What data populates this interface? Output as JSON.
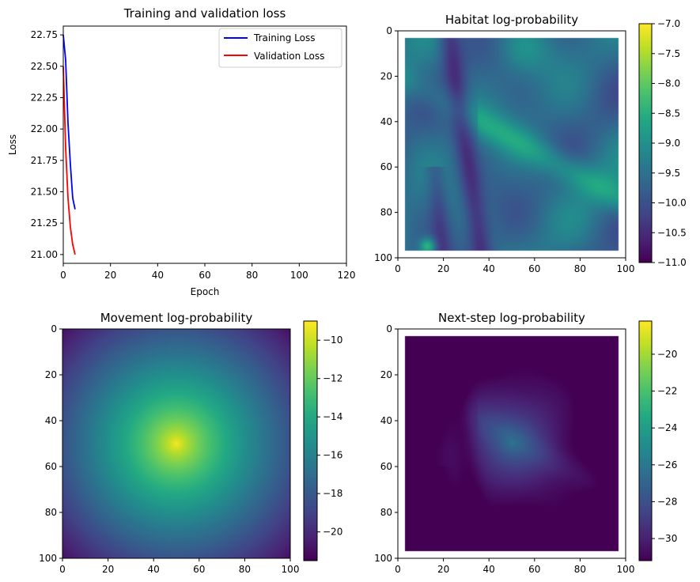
{
  "chart_data": [
    {
      "type": "line",
      "title": "Training and validation loss",
      "xlabel": "Epoch",
      "ylabel": "Loss",
      "xlim": [
        0,
        120
      ],
      "ylim": [
        20.93,
        22.82
      ],
      "xticks": [
        0,
        20,
        40,
        60,
        80,
        100,
        120
      ],
      "yticks": [
        21.0,
        21.25,
        21.5,
        21.75,
        22.0,
        22.25,
        22.5,
        22.75
      ],
      "legend_position": "top-right",
      "grid": false,
      "series": [
        {
          "name": "Training Loss",
          "color": "#0000ff",
          "x": [
            0,
            1,
            2,
            3,
            4,
            5
          ],
          "values": [
            22.75,
            22.55,
            22.05,
            21.72,
            21.45,
            21.36
          ]
        },
        {
          "name": "Validation Loss",
          "color": "#ff0000",
          "x": [
            0,
            1,
            2,
            3,
            4,
            5
          ],
          "values": [
            22.5,
            21.85,
            21.45,
            21.22,
            21.08,
            21.0
          ]
        }
      ]
    },
    {
      "type": "heatmap",
      "title": "Habitat log-probability",
      "colormap": "viridis",
      "xlim": [
        0,
        100
      ],
      "ylim": [
        100,
        0
      ],
      "xticks": [
        0,
        20,
        40,
        60,
        80,
        100
      ],
      "yticks": [
        0,
        20,
        40,
        60,
        80,
        100
      ],
      "valid_region": [
        3,
        97
      ],
      "colorbar": {
        "vmin": -11.0,
        "vmax": -7.0,
        "ticks": [
          -11.0,
          -10.5,
          -10.0,
          -9.5,
          -9.0,
          -8.5,
          -8.0,
          -7.5,
          -7.0
        ],
        "tick_labels": [
          "−11.0",
          "−10.5",
          "−10.0",
          "−9.5",
          "−9.0",
          "−8.5",
          "−8.0",
          "−7.5",
          "−7.0"
        ]
      }
    },
    {
      "type": "heatmap",
      "title": "Movement log-probability",
      "colormap": "viridis",
      "xlim": [
        0,
        100
      ],
      "ylim": [
        100,
        0
      ],
      "xticks": [
        0,
        20,
        40,
        60,
        80,
        100
      ],
      "yticks": [
        0,
        20,
        40,
        60,
        80,
        100
      ],
      "peak": [
        50,
        50
      ],
      "colorbar": {
        "vmin": -21.5,
        "vmax": -9.0,
        "ticks": [
          -20,
          -18,
          -16,
          -14,
          -12,
          -10
        ],
        "tick_labels": [
          "−20",
          "−18",
          "−16",
          "−14",
          "−12",
          "−10"
        ]
      }
    },
    {
      "type": "heatmap",
      "title": "Next-step log-probability",
      "colormap": "viridis",
      "xlim": [
        0,
        100
      ],
      "ylim": [
        100,
        0
      ],
      "xticks": [
        0,
        20,
        40,
        60,
        80,
        100
      ],
      "yticks": [
        0,
        20,
        40,
        60,
        80,
        100
      ],
      "valid_region": [
        3,
        97
      ],
      "peak": [
        50,
        50
      ],
      "colorbar": {
        "vmin": -31.2,
        "vmax": -18.2,
        "ticks": [
          -30,
          -28,
          -26,
          -24,
          -22,
          -20
        ],
        "tick_labels": [
          "−30",
          "−28",
          "−26",
          "−24",
          "−22",
          "−20"
        ]
      }
    }
  ]
}
